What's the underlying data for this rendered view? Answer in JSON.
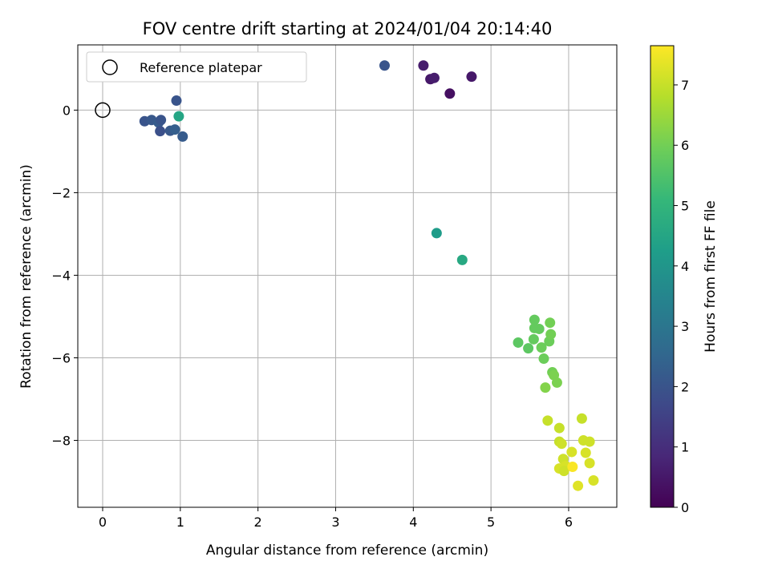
{
  "chart_data": {
    "type": "scatter",
    "title": "FOV centre drift starting at 2024/01/04 20:14:40",
    "xlabel": "Angular distance from reference (arcmin)",
    "ylabel": "Rotation from reference (arcmin)",
    "xlim": [
      -0.32,
      6.62
    ],
    "ylim": [
      -9.62,
      1.58
    ],
    "xticks": [
      0,
      1,
      2,
      3,
      4,
      5,
      6
    ],
    "yticks": [
      0,
      -2,
      -4,
      -6,
      -8
    ],
    "x_tick_labels": [
      "0",
      "1",
      "2",
      "3",
      "4",
      "5",
      "6"
    ],
    "y_tick_labels": [
      "0",
      "−2",
      "−4",
      "−6",
      "−8"
    ],
    "grid": true,
    "legend": {
      "position": "top-left",
      "entries": [
        "Reference platepar"
      ]
    },
    "reference_point": {
      "x": 0,
      "y": 0
    },
    "colormap": {
      "name": "viridis",
      "label": "Hours from first FF file",
      "range": [
        0,
        7.65
      ],
      "ticks": [
        0,
        1,
        2,
        3,
        4,
        5,
        6,
        7
      ],
      "tick_labels": [
        "0",
        "1",
        "2",
        "3",
        "4",
        "5",
        "6",
        "7"
      ],
      "stops": [
        "#440154",
        "#482878",
        "#3e4989",
        "#31688e",
        "#26828e",
        "#1f9e89",
        "#35b779",
        "#6ece58",
        "#b5de2b",
        "#fde725"
      ]
    },
    "points": [
      {
        "x": 4.13,
        "y": 1.08,
        "c": 0.6
      },
      {
        "x": 4.22,
        "y": 0.75,
        "c": 0.5
      },
      {
        "x": 4.27,
        "y": 0.78,
        "c": 0.6
      },
      {
        "x": 4.47,
        "y": 0.4,
        "c": 0.3
      },
      {
        "x": 4.75,
        "y": 0.81,
        "c": 0.5
      },
      {
        "x": 3.63,
        "y": 1.08,
        "c": 2.0
      },
      {
        "x": 0.54,
        "y": -0.27,
        "c": 2.0
      },
      {
        "x": 0.63,
        "y": -0.24,
        "c": 2.1
      },
      {
        "x": 0.72,
        "y": -0.3,
        "c": 2.2
      },
      {
        "x": 0.75,
        "y": -0.24,
        "c": 2.0
      },
      {
        "x": 0.74,
        "y": -0.51,
        "c": 1.9
      },
      {
        "x": 0.87,
        "y": -0.5,
        "c": 2.1
      },
      {
        "x": 0.93,
        "y": -0.47,
        "c": 2.3
      },
      {
        "x": 0.95,
        "y": 0.23,
        "c": 2.0
      },
      {
        "x": 1.03,
        "y": -0.64,
        "c": 2.2
      },
      {
        "x": 0.98,
        "y": -0.15,
        "c": 4.5
      },
      {
        "x": 4.3,
        "y": -2.98,
        "c": 4.2
      },
      {
        "x": 4.63,
        "y": -3.63,
        "c": 4.6
      },
      {
        "x": 5.35,
        "y": -5.63,
        "c": 5.7
      },
      {
        "x": 5.48,
        "y": -5.77,
        "c": 5.7
      },
      {
        "x": 5.55,
        "y": -5.55,
        "c": 5.8
      },
      {
        "x": 5.56,
        "y": -5.08,
        "c": 5.8
      },
      {
        "x": 5.56,
        "y": -5.28,
        "c": 5.8
      },
      {
        "x": 5.62,
        "y": -5.3,
        "c": 5.8
      },
      {
        "x": 5.65,
        "y": -5.75,
        "c": 5.9
      },
      {
        "x": 5.68,
        "y": -6.02,
        "c": 5.9
      },
      {
        "x": 5.75,
        "y": -5.6,
        "c": 5.9
      },
      {
        "x": 5.76,
        "y": -5.15,
        "c": 6.0
      },
      {
        "x": 5.77,
        "y": -5.43,
        "c": 6.0
      },
      {
        "x": 5.79,
        "y": -6.35,
        "c": 6.0
      },
      {
        "x": 5.81,
        "y": -6.42,
        "c": 6.1
      },
      {
        "x": 5.85,
        "y": -6.6,
        "c": 6.1
      },
      {
        "x": 5.7,
        "y": -6.72,
        "c": 6.2
      },
      {
        "x": 5.73,
        "y": -7.52,
        "c": 7.0
      },
      {
        "x": 5.88,
        "y": -7.7,
        "c": 7.0
      },
      {
        "x": 5.88,
        "y": -8.03,
        "c": 7.0
      },
      {
        "x": 5.91,
        "y": -8.08,
        "c": 7.1
      },
      {
        "x": 5.93,
        "y": -8.45,
        "c": 7.1
      },
      {
        "x": 5.96,
        "y": -8.62,
        "c": 7.2
      },
      {
        "x": 5.88,
        "y": -8.68,
        "c": 7.2
      },
      {
        "x": 5.94,
        "y": -8.74,
        "c": 7.1
      },
      {
        "x": 6.04,
        "y": -8.28,
        "c": 7.2
      },
      {
        "x": 6.05,
        "y": -8.64,
        "c": 7.6
      },
      {
        "x": 6.12,
        "y": -9.1,
        "c": 7.3
      },
      {
        "x": 6.17,
        "y": -7.47,
        "c": 7.0
      },
      {
        "x": 6.19,
        "y": -8.0,
        "c": 7.1
      },
      {
        "x": 6.22,
        "y": -8.3,
        "c": 7.2
      },
      {
        "x": 6.27,
        "y": -8.03,
        "c": 7.1
      },
      {
        "x": 6.27,
        "y": -8.55,
        "c": 7.2
      },
      {
        "x": 6.32,
        "y": -8.97,
        "c": 7.2
      }
    ]
  }
}
